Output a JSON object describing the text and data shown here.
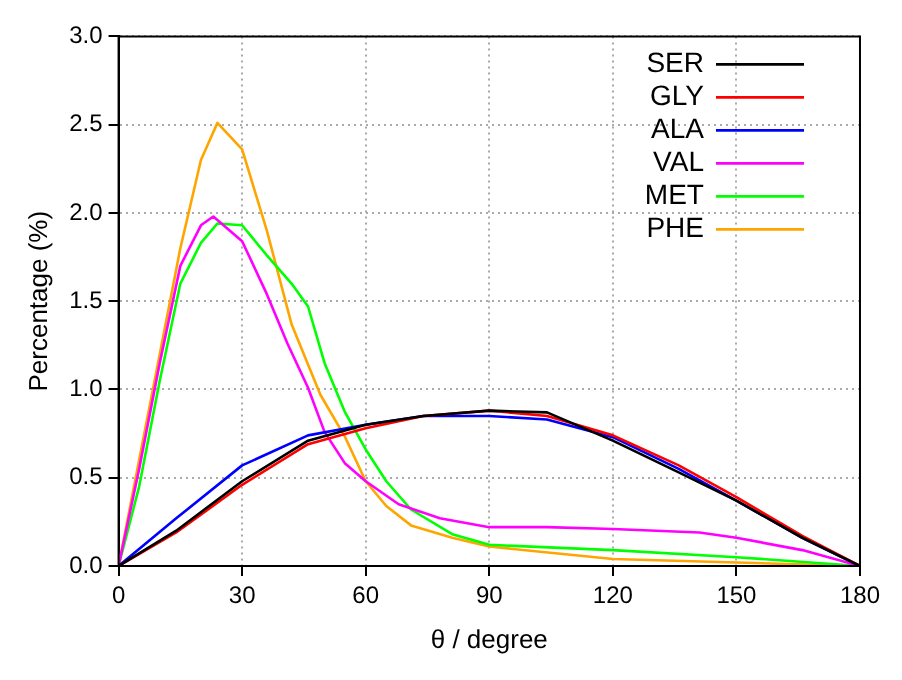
{
  "chart_data": {
    "type": "line",
    "xlabel": "θ / degree",
    "ylabel": "Percentage (%)",
    "xlim": [
      0,
      180
    ],
    "xticks": [
      0,
      30,
      60,
      90,
      120,
      150,
      180
    ],
    "ylim": [
      0,
      3
    ],
    "yticks": [
      {
        "value": 0,
        "label": "0.0"
      },
      0.5,
      {
        "value": 1,
        "label": "1.0"
      },
      1.5,
      {
        "value": 2,
        "label": "2.0"
      },
      2.5,
      {
        "value": 3,
        "label": "3.0"
      }
    ],
    "grid": true,
    "legend": "top right",
    "marker": "none",
    "line_style": "solid",
    "series": [
      {
        "name": "SER",
        "color": "#000000",
        "x": [
          0,
          14,
          30,
          46,
          60,
          74,
          90,
          104,
          120,
          136,
          150,
          166,
          180
        ],
        "values": [
          0,
          0.2,
          0.48,
          0.71,
          0.8,
          0.85,
          0.88,
          0.87,
          0.71,
          0.53,
          0.37,
          0.16,
          0
        ]
      },
      {
        "name": "GLY",
        "color": "#ff0000",
        "x": [
          0,
          14,
          30,
          46,
          60,
          74,
          90,
          104,
          120,
          136,
          150,
          166,
          180
        ],
        "values": [
          0,
          0.19,
          0.46,
          0.69,
          0.78,
          0.85,
          0.88,
          0.85,
          0.74,
          0.57,
          0.39,
          0.17,
          0
        ]
      },
      {
        "name": "ALA",
        "color": "#0000ff",
        "x": [
          0,
          14,
          30,
          46,
          60,
          74,
          90,
          104,
          120,
          136,
          150,
          166,
          180
        ],
        "values": [
          0,
          0.27,
          0.57,
          0.74,
          0.8,
          0.85,
          0.85,
          0.83,
          0.73,
          0.55,
          0.37,
          0.16,
          0
        ]
      },
      {
        "name": "VAL",
        "color": "#ff00ff",
        "x": [
          0,
          5,
          10,
          15,
          20,
          23,
          30,
          36,
          41,
          46,
          50,
          55,
          60,
          68,
          78,
          90,
          104,
          120,
          141,
          150,
          166,
          180
        ],
        "values": [
          0,
          0.55,
          1.15,
          1.7,
          1.93,
          1.98,
          1.84,
          1.54,
          1.26,
          1.01,
          0.76,
          0.58,
          0.48,
          0.35,
          0.27,
          0.22,
          0.22,
          0.21,
          0.19,
          0.16,
          0.09,
          0
        ]
      },
      {
        "name": "MET",
        "color": "#00ff00",
        "x": [
          0,
          5,
          10,
          15,
          20,
          24,
          30,
          36,
          42,
          46,
          50,
          55,
          60,
          65,
          71,
          81,
          90,
          120,
          150,
          168,
          180
        ],
        "values": [
          0,
          0.45,
          1.05,
          1.6,
          1.83,
          1.94,
          1.93,
          1.76,
          1.6,
          1.47,
          1.15,
          0.87,
          0.66,
          0.48,
          0.32,
          0.18,
          0.12,
          0.09,
          0.05,
          0.02,
          0
        ]
      },
      {
        "name": "PHE",
        "color": "#ffa500",
        "x": [
          0,
          5,
          10,
          15,
          20,
          24,
          30,
          36,
          42,
          49,
          55,
          60,
          65,
          71,
          81,
          90,
          120,
          150,
          180
        ],
        "values": [
          0,
          0.6,
          1.2,
          1.8,
          2.3,
          2.51,
          2.36,
          1.9,
          1.37,
          0.97,
          0.73,
          0.48,
          0.34,
          0.23,
          0.16,
          0.11,
          0.04,
          0.02,
          0
        ]
      }
    ]
  }
}
